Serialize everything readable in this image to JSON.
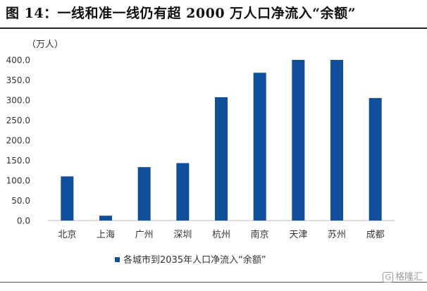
{
  "header": {
    "title": "图 14：一线和准一线仍有超 2000 万人口净流入“余额”"
  },
  "chart_data": {
    "type": "bar",
    "unit_label": "（万人）",
    "categories": [
      "北京",
      "上海",
      "广州",
      "深圳",
      "杭州",
      "南京",
      "天津",
      "苏州",
      "成都"
    ],
    "series": [
      {
        "name": "各城市到2035年人口净流入“余额”",
        "values": [
          110,
          12,
          133,
          143,
          307,
          368,
          400,
          400,
          305
        ]
      }
    ],
    "y_ticks": [
      "0.0",
      "50.0",
      "100.0",
      "150.0",
      "200.0",
      "250.0",
      "300.0",
      "350.0",
      "400.0"
    ],
    "ylim": [
      0,
      400
    ],
    "grid": false,
    "legend_position": "bottom",
    "bar_color": "#0f4f9c"
  },
  "watermark": {
    "text": "格隆汇",
    "badge": "G"
  }
}
